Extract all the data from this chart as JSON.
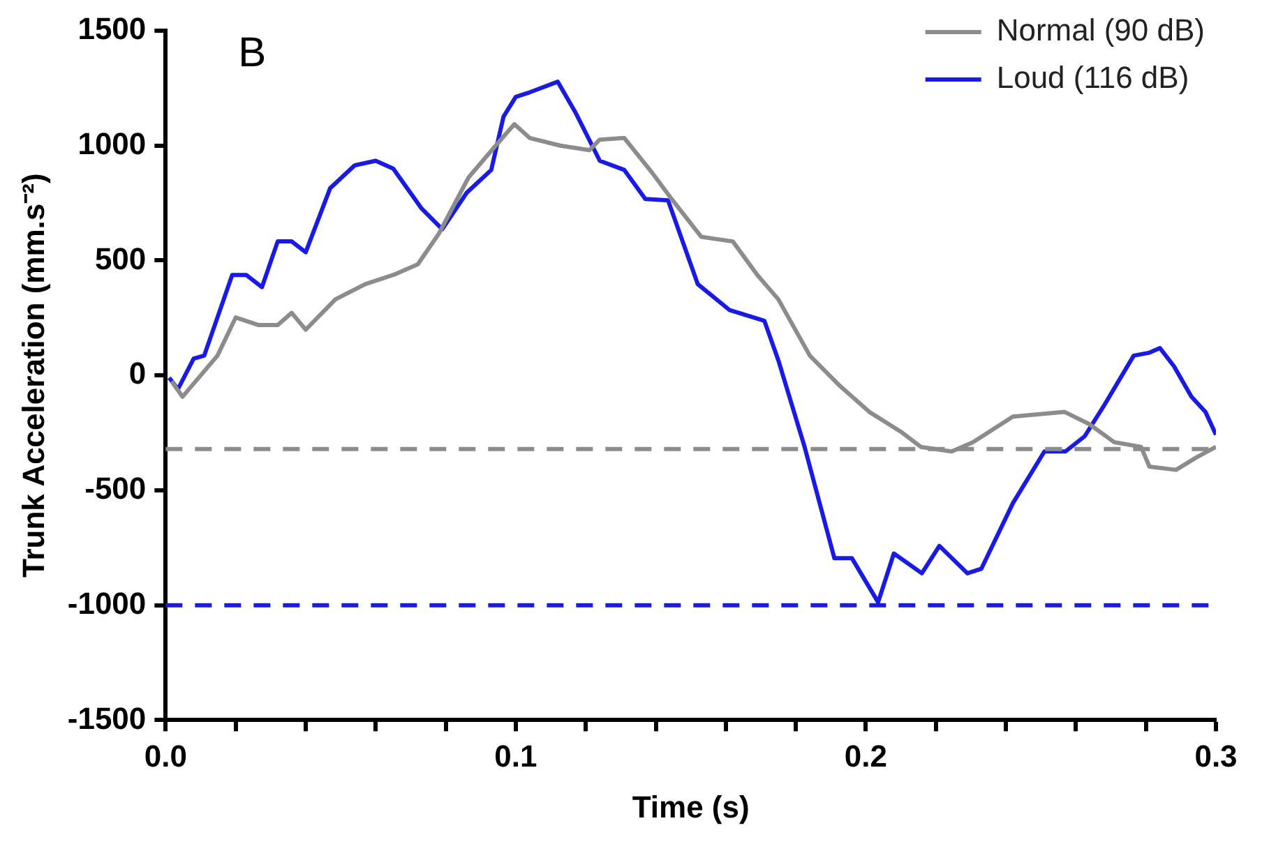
{
  "chart_data": {
    "type": "line",
    "xlabel": "Time (s)",
    "ylabel": "Trunk Acceleration (mm.s⁻²)",
    "annotations": [
      "B"
    ],
    "xlim": [
      0,
      0.3
    ],
    "ylim": [
      -1500,
      1500
    ],
    "xticks": [
      {
        "value": 0,
        "label": "0.0"
      },
      {
        "value": 0.02,
        "label": null
      },
      {
        "value": 0.04,
        "label": null
      },
      {
        "value": 0.06,
        "label": null
      },
      {
        "value": 0.08,
        "label": null
      },
      {
        "value": 0.1,
        "label": "0.1"
      },
      {
        "value": 0.12,
        "label": null
      },
      {
        "value": 0.14,
        "label": null
      },
      {
        "value": 0.16,
        "label": null
      },
      {
        "value": 0.18,
        "label": null
      },
      {
        "value": 0.2,
        "label": "0.2"
      },
      {
        "value": 0.22,
        "label": null
      },
      {
        "value": 0.24,
        "label": null
      },
      {
        "value": 0.26,
        "label": null
      },
      {
        "value": 0.28,
        "label": null
      },
      {
        "value": 0.3,
        "label": "0.3"
      }
    ],
    "yticks": [
      -1500,
      -1000,
      -500,
      0,
      500,
      1000,
      1500
    ],
    "grid": false,
    "legend": "top right",
    "marker": "none",
    "line_style": "solid",
    "ref_lines": [
      {
        "axis": "y",
        "value": -320,
        "label": null,
        "color": "#8c8c8c",
        "line_style": "dashed"
      },
      {
        "axis": "y",
        "value": -1000,
        "label": null,
        "color": "#1a1ae6",
        "line_style": "dashed"
      }
    ],
    "series": [
      {
        "name": "Normal (90 dB)",
        "color": "#8c8c8c",
        "x": [
          0.0017,
          0.0048,
          0.0148,
          0.02,
          0.0266,
          0.032,
          0.036,
          0.04,
          0.0485,
          0.057,
          0.065,
          0.072,
          0.078,
          0.0865,
          0.095,
          0.0996,
          0.104,
          0.1127,
          0.121,
          0.124,
          0.131,
          0.139,
          0.1445,
          0.153,
          0.162,
          0.169,
          0.175,
          0.184,
          0.1926,
          0.201,
          0.21,
          0.2157,
          0.2245,
          0.2306,
          0.242,
          0.2568,
          0.2638,
          0.271,
          0.2786,
          0.281,
          0.2886,
          0.2943,
          0.3
        ],
        "values": [
          -26,
          -93,
          86,
          252,
          219,
          219,
          272,
          199,
          331,
          397,
          437,
          483,
          616,
          861,
          1013,
          1093,
          1033,
          1000,
          980,
          1026,
          1033,
          881,
          768,
          603,
          583,
          437,
          331,
          86,
          -46,
          -159,
          -245,
          -311,
          -331,
          -291,
          -179,
          -159,
          -212,
          -291,
          -311,
          -397,
          -411,
          -358,
          -311
        ]
      },
      {
        "name": "Loud (116 dB)",
        "color": "#1a1ae6",
        "x": [
          0.001,
          0.0035,
          0.008,
          0.011,
          0.019,
          0.023,
          0.0275,
          0.032,
          0.036,
          0.04,
          0.047,
          0.054,
          0.06,
          0.065,
          0.073,
          0.079,
          0.086,
          0.093,
          0.0965,
          0.1,
          0.104,
          0.112,
          0.117,
          0.124,
          0.131,
          0.137,
          0.1435,
          0.152,
          0.161,
          0.171,
          0.175,
          0.1825,
          0.191,
          0.196,
          0.2035,
          0.208,
          0.216,
          0.221,
          0.229,
          0.233,
          0.242,
          0.251,
          0.257,
          0.2625,
          0.268,
          0.2765,
          0.281,
          0.284,
          0.288,
          0.293,
          0.297,
          0.3
        ],
        "values": [
          -10,
          -60,
          73,
          86,
          437,
          437,
          384,
          583,
          583,
          536,
          815,
          914,
          934,
          900,
          728,
          636,
          795,
          894,
          1126,
          1212,
          1232,
          1278,
          1146,
          934,
          894,
          768,
          762,
          397,
          285,
          238,
          66,
          -311,
          -795,
          -795,
          -987,
          -775,
          -861,
          -742,
          -861,
          -841,
          -556,
          -331,
          -331,
          -265,
          -132,
          86,
          99,
          119,
          40,
          -93,
          -159,
          -258
        ]
      }
    ]
  }
}
